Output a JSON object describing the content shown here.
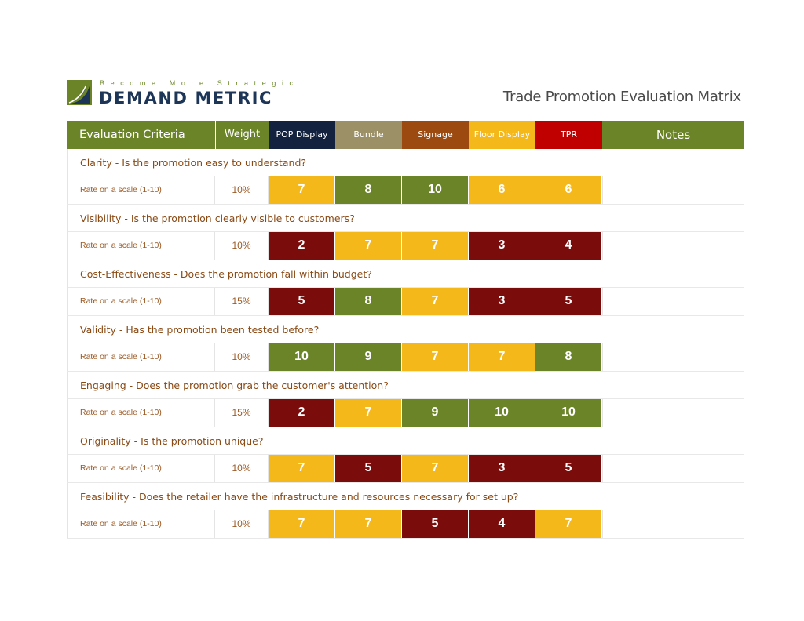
{
  "brand": {
    "tagline": "Become More Strategic",
    "name": "DEMAND METRIC",
    "colors": {
      "green": "#6b8428",
      "navy": "#1d3557"
    }
  },
  "title": "Trade Promotion Evaluation Matrix",
  "header": {
    "criteria": "Evaluation Criteria",
    "weight": "Weight",
    "options": [
      {
        "label": "POP Display",
        "color": "#13223f"
      },
      {
        "label": "Bundle",
        "color": "#9c9066"
      },
      {
        "label": "Signage",
        "color": "#9c4a0f"
      },
      {
        "label": "Floor Display",
        "color": "#f5b81b"
      },
      {
        "label": "TPR",
        "color": "#c00000"
      }
    ],
    "notes": "Notes"
  },
  "score_colors": {
    "high": "#6b8428",
    "mid": "#f5b81b",
    "low": "#7b0c0c"
  },
  "criteria": [
    {
      "question": "Clarity - Is the promotion easy to understand?",
      "rate_label": "Rate on a scale (1-10)",
      "weight": "10%",
      "scores": [
        "7",
        "8",
        "10",
        "6",
        "6"
      ],
      "levels": [
        "mid",
        "high",
        "high",
        "mid",
        "mid"
      ]
    },
    {
      "question": "Visibility - Is the promotion clearly visible to customers?",
      "rate_label": "Rate on a scale (1-10)",
      "weight": "10%",
      "scores": [
        "2",
        "7",
        "7",
        "3",
        "4"
      ],
      "levels": [
        "low",
        "mid",
        "mid",
        "low",
        "low"
      ]
    },
    {
      "question": "Cost-Effectiveness - Does the promotion fall within budget?",
      "rate_label": "Rate on a scale (1-10)",
      "weight": "15%",
      "scores": [
        "5",
        "8",
        "7",
        "3",
        "5"
      ],
      "levels": [
        "low",
        "high",
        "mid",
        "low",
        "low"
      ]
    },
    {
      "question": "Validity - Has the promotion been tested before?",
      "rate_label": "Rate on a scale (1-10)",
      "weight": "10%",
      "scores": [
        "10",
        "9",
        "7",
        "7",
        "8"
      ],
      "levels": [
        "high",
        "high",
        "mid",
        "mid",
        "high"
      ]
    },
    {
      "question": "Engaging - Does the promotion grab the customer's attention?",
      "rate_label": "Rate on a scale (1-10)",
      "weight": "15%",
      "scores": [
        "2",
        "7",
        "9",
        "10",
        "10"
      ],
      "levels": [
        "low",
        "mid",
        "high",
        "high",
        "high"
      ]
    },
    {
      "question": "Originality - Is the promotion unique?",
      "rate_label": "Rate on a scale (1-10)",
      "weight": "10%",
      "scores": [
        "7",
        "5",
        "7",
        "3",
        "5"
      ],
      "levels": [
        "mid",
        "low",
        "mid",
        "low",
        "low"
      ]
    },
    {
      "question": "Feasibility - Does the retailer have the infrastructure and resources necessary for set up?",
      "rate_label": "Rate on a scale (1-10)",
      "weight": "10%",
      "scores": [
        "7",
        "7",
        "5",
        "4",
        "7"
      ],
      "levels": [
        "mid",
        "mid",
        "low",
        "low",
        "mid"
      ]
    }
  ]
}
